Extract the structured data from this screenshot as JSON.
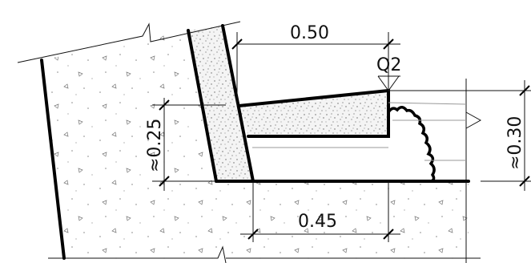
{
  "labels": {
    "dim_top": "0.50",
    "dim_bottom": "0.45",
    "dim_left": "≈0.25",
    "dim_right": "≈0.30",
    "load": "Q2"
  }
}
